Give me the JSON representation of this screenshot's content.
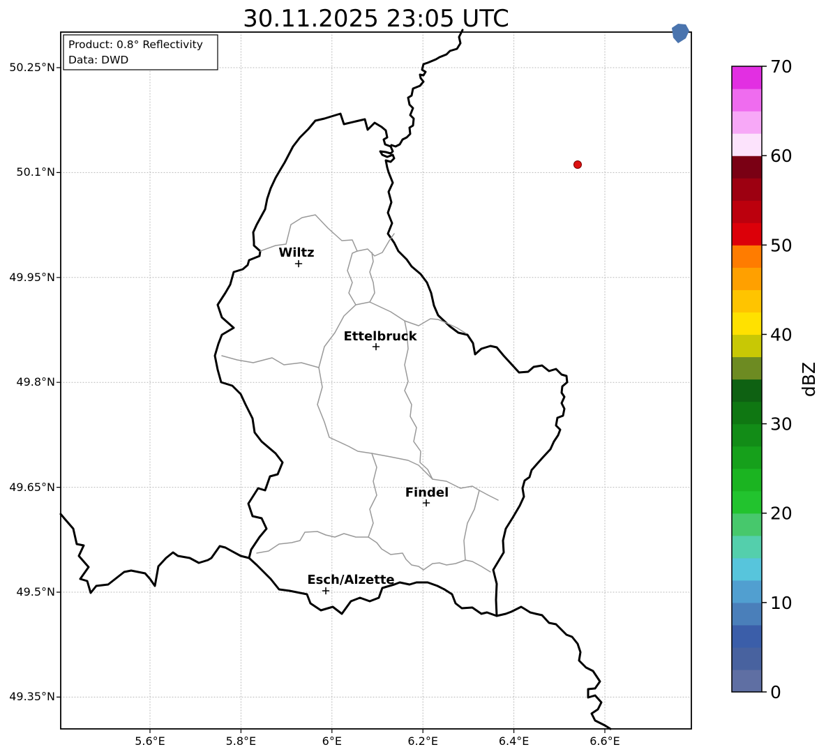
{
  "title": "30.11.2025 23:05 UTC",
  "info_box": {
    "line1": "Product: 0.8° Reflectivity",
    "line2": "Data: DWD"
  },
  "cities": [
    {
      "name": "Wiltz"
    },
    {
      "name": "Ettelbruck"
    },
    {
      "name": "Findel"
    },
    {
      "name": "Esch/Alzette"
    }
  ],
  "axes": {
    "y_ticks": [
      "50.25°N",
      "50.1°N",
      "49.95°N",
      "49.8°N",
      "49.65°N",
      "49.5°N",
      "49.35°N"
    ],
    "x_ticks": [
      "5.6°E",
      "5.8°E",
      "6°E",
      "6.2°E",
      "6.4°E",
      "6.6°E"
    ]
  },
  "colorbar": {
    "label": "dBZ",
    "ticks": [
      0,
      10,
      20,
      30,
      40,
      50,
      60,
      70
    ],
    "min": 0,
    "max": 70,
    "colors_bottom_to_top": [
      "#5f6fa3",
      "#48629f",
      "#3b5ea9",
      "#4a7fba",
      "#519fd0",
      "#57c5dc",
      "#54cfac",
      "#47c86c",
      "#22c32e",
      "#1bb421",
      "#16a01b",
      "#128c17",
      "#0f7712",
      "#0e6112",
      "#6d8b22",
      "#c8c805",
      "#ffe100",
      "#ffc400",
      "#ffa000",
      "#ff7c00",
      "#dc0009",
      "#bc000d",
      "#9d0011",
      "#7a0014",
      "#fce3fc",
      "#f7a8f7",
      "#ef6cef",
      "#e22fe2"
    ]
  },
  "markers": {
    "radar_site_color": "#dd1111",
    "echo_patch_color": "#4a74ae"
  }
}
